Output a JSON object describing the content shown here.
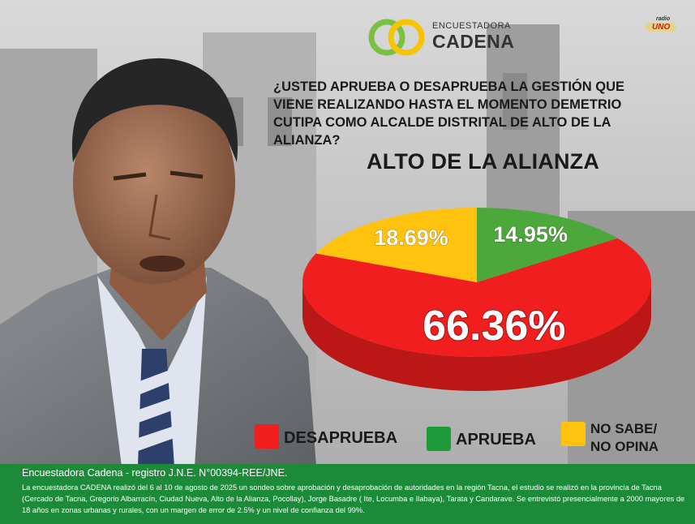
{
  "logo": {
    "small_text": "ENCUESTADORA",
    "brand": "CADENA"
  },
  "radio": {
    "small": "radio",
    "name": "UNO"
  },
  "question": "¿USTED APRUEBA O DESAPRUEBA LA GESTIÓN QUE VIENE REALIZANDO HASTA EL MOMENTO DEMETRIO CUTIPA COMO ALCALDE DISTRITAL DE ALTO DE LA ALIANZA?",
  "chart_title": "ALTO DE LA ALIANZA",
  "chart_data": {
    "type": "pie",
    "title": "ALTO DE LA ALIANZA",
    "series": [
      {
        "name": "DESAPRUEBA",
        "value": 66.36,
        "label": "66.36%",
        "color": "#f01e1e"
      },
      {
        "name": "APRUEBA",
        "value": 14.95,
        "label": "14.95%",
        "color": "#4da83c"
      },
      {
        "name": "NO SABE/ NO OPINA",
        "value": 18.69,
        "label": "18.69%",
        "color": "#ffc20e"
      }
    ],
    "legend_position": "bottom"
  },
  "legend": {
    "desaprueba": "DESAPRUEBA",
    "aprueba": "APRUEBA",
    "nosabe_line1": "NO SABE/",
    "nosabe_line2": "NO OPINA"
  },
  "colors": {
    "footer": "#1d8a3a",
    "red": "#f01e1e",
    "green": "#4da83c",
    "yellow": "#ffc20e"
  },
  "footer": {
    "registro": "Encuestadora Cadena - registro J.N.E. N°00394-REE/JNE.",
    "detalle": "La encuestadora CADENA realizó del 6 al 10 de agosto de 2025 un sondeo sobre aprobación y desaprobación de autoridades en la región Tacna, el estudio se realizó en la provincia de Tacna (Cercado de Tacna, Gregorio Albarracín, Ciudad Nueva, Alto de la Alianza, Pocollay), Jorge Basadre ( Ite, Locumba e Ilabaya), Tarata y Candarave. Se entrevistó presencialmente a 2000 mayores de 18 años en zonas urbanas y rurales, con un margen de error de 2.5% y un nivel de confianza del 99%."
  }
}
